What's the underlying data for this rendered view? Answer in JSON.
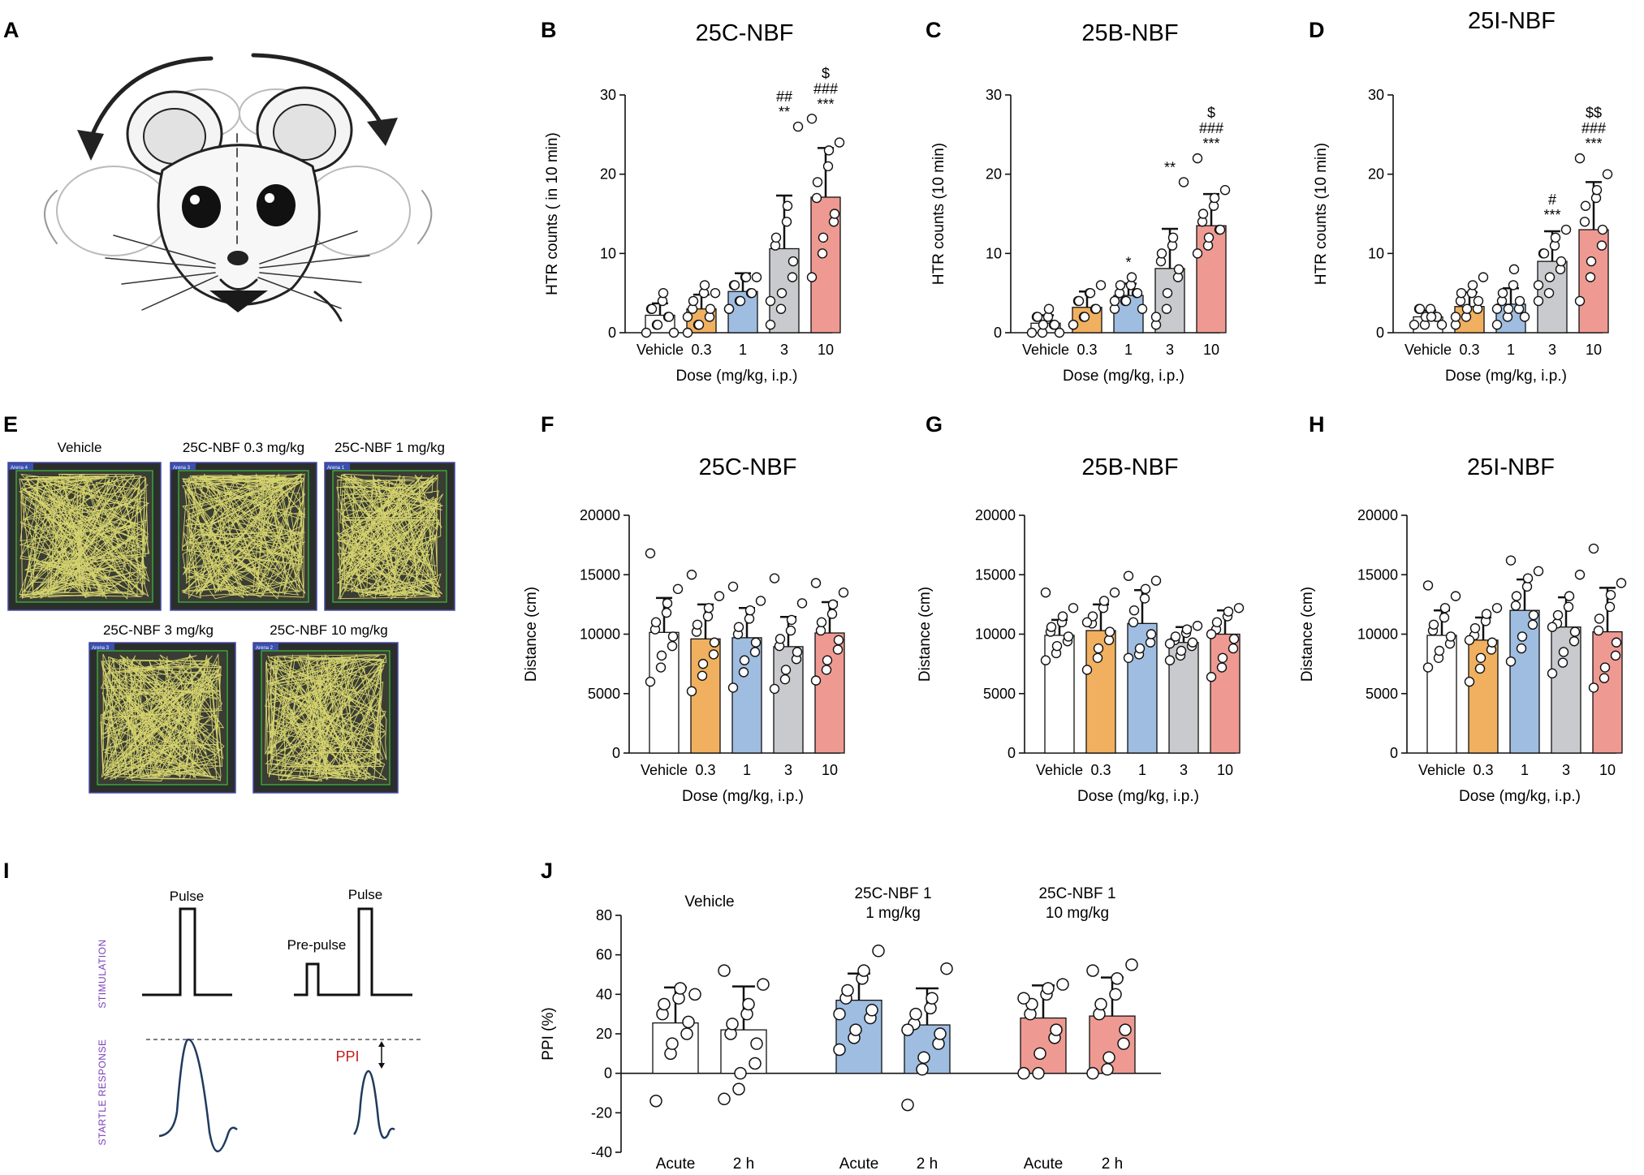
{
  "colors": {
    "Vehicle": "#ffffff",
    "0.3": "#f0b060",
    "1": "#9fbde0",
    "3": "#c9cacd",
    "10": "#ee9a92"
  },
  "panel_labels": {
    "A": "A",
    "B": "B",
    "C": "C",
    "D": "D",
    "E": "E",
    "F": "F",
    "G": "G",
    "H": "H",
    "I": "I",
    "J": "J"
  },
  "panelE": {
    "labels": [
      "Vehicle",
      "25C-NBF 0.3 mg/kg",
      "25C-NBF 1 mg/kg",
      "25C-NBF 3 mg/kg",
      "25C-NBF 10 mg/kg"
    ],
    "arena_tags": [
      "Arena 4",
      "Arena 3",
      "Arena 1",
      "Arena 3",
      "Arena 2"
    ]
  },
  "panelI": {
    "stimulation_label": "STIMULATION",
    "startle_label": "STARTLE RESPONSE",
    "pulse_label": "Pulse",
    "pulse_label_2": "Pulse",
    "prepulse_label": "Pre-pulse",
    "ppi_label": "PPI"
  },
  "chart_data": [
    {
      "id": "B",
      "type": "bar",
      "title": "25C-NBF",
      "xlabel": "Dose (mg/kg, i.p.)",
      "ylabel": "HTR counts ( in 10 min)",
      "ylim": [
        0,
        30
      ],
      "yticks": [
        "0",
        "10",
        "20",
        "30"
      ],
      "categories": [
        "Vehicle",
        "0.3",
        "1",
        "3",
        "10"
      ],
      "values": [
        2.2,
        3.0,
        5.2,
        10.6,
        17.1
      ],
      "sd": [
        1.5,
        1.8,
        2.3,
        6.7,
        6.2
      ],
      "points": [
        [
          0,
          1,
          1,
          2,
          2,
          3,
          3,
          4,
          5,
          0
        ],
        [
          0,
          1,
          1,
          2,
          3,
          3,
          4,
          5,
          6,
          5,
          2
        ],
        [
          3,
          4,
          4,
          5,
          5,
          6,
          6,
          7,
          7,
          7,
          3
        ],
        [
          1,
          3,
          5,
          7,
          9,
          11,
          12,
          14,
          16,
          26,
          4
        ],
        [
          7,
          10,
          12,
          14,
          15,
          17,
          19,
          21,
          23,
          24,
          27
        ]
      ],
      "annotations": [
        [
          "",
          "",
          "",
          ""
        ],
        [
          "",
          "",
          "",
          ""
        ],
        [
          "",
          "",
          "",
          ""
        ],
        [
          "",
          "##",
          "**",
          ""
        ],
        [
          "$",
          "###",
          "***",
          ""
        ]
      ]
    },
    {
      "id": "C",
      "type": "bar",
      "title": "25B-NBF",
      "xlabel": "Dose (mg/kg, i.p.)",
      "ylabel": "HTR counts (10 min)",
      "ylim": [
        0,
        30
      ],
      "yticks": [
        "0",
        "10",
        "20",
        "30"
      ],
      "categories": [
        "Vehicle",
        "0.3",
        "1",
        "3",
        "10"
      ],
      "values": [
        1.2,
        3.2,
        4.7,
        8.1,
        13.5
      ],
      "sd": [
        1.0,
        2.0,
        1.5,
        5.0,
        4.0
      ],
      "points": [
        [
          0,
          0,
          1,
          1,
          1,
          2,
          2,
          2,
          3,
          0
        ],
        [
          1,
          2,
          2,
          3,
          3,
          4,
          4,
          5,
          5,
          6,
          1
        ],
        [
          3,
          4,
          4,
          5,
          5,
          5,
          6,
          6,
          7,
          3,
          4
        ],
        [
          1,
          3,
          5,
          7,
          8,
          9,
          10,
          11,
          12,
          19,
          2
        ],
        [
          10,
          11,
          12,
          13,
          13,
          14,
          15,
          16,
          17,
          18,
          22
        ]
      ],
      "annotations": [
        [
          "",
          "",
          "",
          ""
        ],
        [
          "",
          "",
          "",
          ""
        ],
        [
          "",
          "",
          "*",
          ""
        ],
        [
          "",
          "",
          "**",
          ""
        ],
        [
          "$",
          "###",
          "***",
          ""
        ]
      ]
    },
    {
      "id": "D",
      "type": "bar",
      "title": "25I-NBF",
      "xlabel": "Dose (mg/kg, i.p.)",
      "ylabel": "HTR counts (10 min)",
      "ylim": [
        0,
        30
      ],
      "yticks": [
        "0",
        "10",
        "20",
        "30"
      ],
      "categories": [
        "Vehicle",
        "0.3",
        "1",
        "3",
        "10"
      ],
      "values": [
        2.0,
        3.3,
        3.6,
        9.0,
        13.0
      ],
      "sd": [
        0.8,
        1.8,
        2.0,
        3.8,
        6.0
      ],
      "points": [
        [
          1,
          1,
          2,
          2,
          2,
          3,
          3,
          3,
          2,
          1
        ],
        [
          1,
          2,
          3,
          3,
          4,
          4,
          5,
          5,
          6,
          7,
          2
        ],
        [
          1,
          2,
          3,
          3,
          4,
          4,
          5,
          6,
          8,
          2,
          3
        ],
        [
          4,
          5,
          7,
          8,
          9,
          10,
          10,
          11,
          12,
          13,
          6
        ],
        [
          4,
          7,
          9,
          11,
          13,
          14,
          16,
          17,
          18,
          20,
          22
        ]
      ],
      "annotations": [
        [
          "",
          "",
          "",
          ""
        ],
        [
          "",
          "",
          "",
          ""
        ],
        [
          "",
          "",
          "",
          ""
        ],
        [
          "",
          "",
          "#",
          "***"
        ],
        [
          "$$",
          "###",
          "***",
          ""
        ]
      ]
    },
    {
      "id": "F",
      "type": "bar",
      "title": "25C-NBF",
      "xlabel": "Dose (mg/kg, i.p.)",
      "ylabel": "Distance (cm)",
      "ylim": [
        0,
        20000
      ],
      "yticks": [
        "0",
        "5000",
        "10000",
        "15000",
        "20000"
      ],
      "categories": [
        "Vehicle",
        "0.3",
        "1",
        "3",
        "10"
      ],
      "values": [
        10150,
        9600,
        9700,
        8950,
        10100
      ],
      "sd": [
        2900,
        2900,
        2500,
        2500,
        2600
      ],
      "points": [
        [
          6000,
          7200,
          8200,
          9000,
          9800,
          10400,
          11000,
          11800,
          12600,
          13800,
          16800
        ],
        [
          5200,
          6500,
          7500,
          8300,
          9300,
          10200,
          10800,
          11500,
          12200,
          13200,
          15000
        ],
        [
          5500,
          6800,
          7800,
          8500,
          9300,
          10000,
          10600,
          11300,
          12000,
          12800,
          14000
        ],
        [
          5400,
          6200,
          7000,
          7900,
          8500,
          9000,
          9600,
          10300,
          11200,
          12600,
          14700
        ],
        [
          6100,
          7000,
          7800,
          8700,
          9500,
          10300,
          11000,
          11700,
          12500,
          13500,
          14300
        ]
      ],
      "annotations": []
    },
    {
      "id": "G",
      "type": "bar",
      "title": "25B-NBF",
      "xlabel": "Dose (mg/kg, i.p.)",
      "ylabel": "Distance (cm)",
      "ylim": [
        0,
        20000
      ],
      "yticks": [
        "0",
        "5000",
        "10000",
        "15000",
        "20000"
      ],
      "categories": [
        "Vehicle",
        "0.3",
        "1",
        "3",
        "10"
      ],
      "values": [
        9900,
        10300,
        10900,
        9300,
        10000
      ],
      "sd": [
        1300,
        2200,
        2800,
        1300,
        2000
      ],
      "points": [
        [
          7800,
          8400,
          9000,
          9400,
          9800,
          10200,
          10600,
          11000,
          11500,
          12200,
          13500
        ],
        [
          7000,
          8000,
          8800,
          9500,
          10200,
          10900,
          11500,
          12200,
          12800,
          13500,
          11000
        ],
        [
          8000,
          8300,
          8800,
          9300,
          10000,
          11000,
          12000,
          13000,
          13800,
          14500,
          14900
        ],
        [
          7800,
          8200,
          8600,
          9000,
          9300,
          9500,
          9800,
          10100,
          10400,
          10700,
          9200
        ],
        [
          6400,
          7200,
          8000,
          8800,
          9600,
          10400,
          11000,
          11500,
          11900,
          12200,
          10000
        ]
      ],
      "annotations": []
    },
    {
      "id": "H",
      "type": "bar",
      "title": "25I-NBF",
      "xlabel": "Dose (mg/kg, i.p.)",
      "ylabel": "Distance (cm)",
      "ylim": [
        0,
        20000
      ],
      "yticks": [
        "0",
        "5000",
        "10000",
        "15000",
        "20000"
      ],
      "categories": [
        "Vehicle",
        "0.3",
        "1",
        "3",
        "10"
      ],
      "values": [
        9900,
        9500,
        12000,
        10600,
        10200
      ],
      "sd": [
        2100,
        1900,
        2600,
        2500,
        3700
      ],
      "points": [
        [
          7200,
          8000,
          8600,
          9200,
          9800,
          10300,
          10800,
          11400,
          12200,
          13200,
          14100
        ],
        [
          6000,
          7100,
          8000,
          8700,
          9300,
          9900,
          10500,
          11100,
          11700,
          12200,
          9500
        ],
        [
          7700,
          8800,
          9800,
          10800,
          11600,
          12400,
          13200,
          14000,
          14700,
          15300,
          16200
        ],
        [
          6700,
          7600,
          8500,
          9400,
          10200,
          10900,
          11600,
          12300,
          13200,
          15000,
          10600
        ],
        [
          5500,
          6300,
          7200,
          8200,
          9300,
          10300,
          11300,
          12300,
          13300,
          14300,
          17200
        ]
      ],
      "annotations": []
    },
    {
      "id": "J",
      "type": "bar",
      "ylabel": "PPI (%)",
      "ylim": [
        -40,
        80
      ],
      "yticks": [
        "-40",
        "-20",
        "0",
        "20",
        "40",
        "60",
        "80"
      ],
      "groups": [
        {
          "label_1": "Vehicle",
          "label_2": "",
          "color": "#ffffff"
        },
        {
          "label_1": "25C-NBF 1",
          "label_2": "1 mg/kg",
          "color": "#9fbde0"
        },
        {
          "label_1": "25C-NBF 1",
          "label_2": "10 mg/kg",
          "color": "#ee9a92"
        }
      ],
      "categories": [
        "Acute",
        "2 h",
        "Acute",
        "2 h",
        "Acute",
        "2 h"
      ],
      "values": [
        25.5,
        22.0,
        37.0,
        24.5,
        28.0,
        29.0
      ],
      "sd": [
        18.0,
        22.0,
        13.5,
        18.5,
        16.5,
        19.5
      ],
      "points": [
        [
          -14,
          10,
          15,
          20,
          26,
          30,
          35,
          38,
          43,
          40
        ],
        [
          -13,
          -8,
          0,
          5,
          15,
          20,
          25,
          30,
          35,
          45,
          52
        ],
        [
          12,
          18,
          22,
          28,
          32,
          38,
          42,
          48,
          52,
          62,
          30
        ],
        [
          -16,
          2,
          8,
          15,
          20,
          25,
          30,
          33,
          38,
          53,
          22
        ],
        [
          0,
          0,
          10,
          18,
          22,
          30,
          35,
          40,
          43,
          45,
          38
        ],
        [
          0,
          2,
          8,
          15,
          22,
          30,
          35,
          40,
          48,
          55,
          52
        ]
      ]
    }
  ]
}
